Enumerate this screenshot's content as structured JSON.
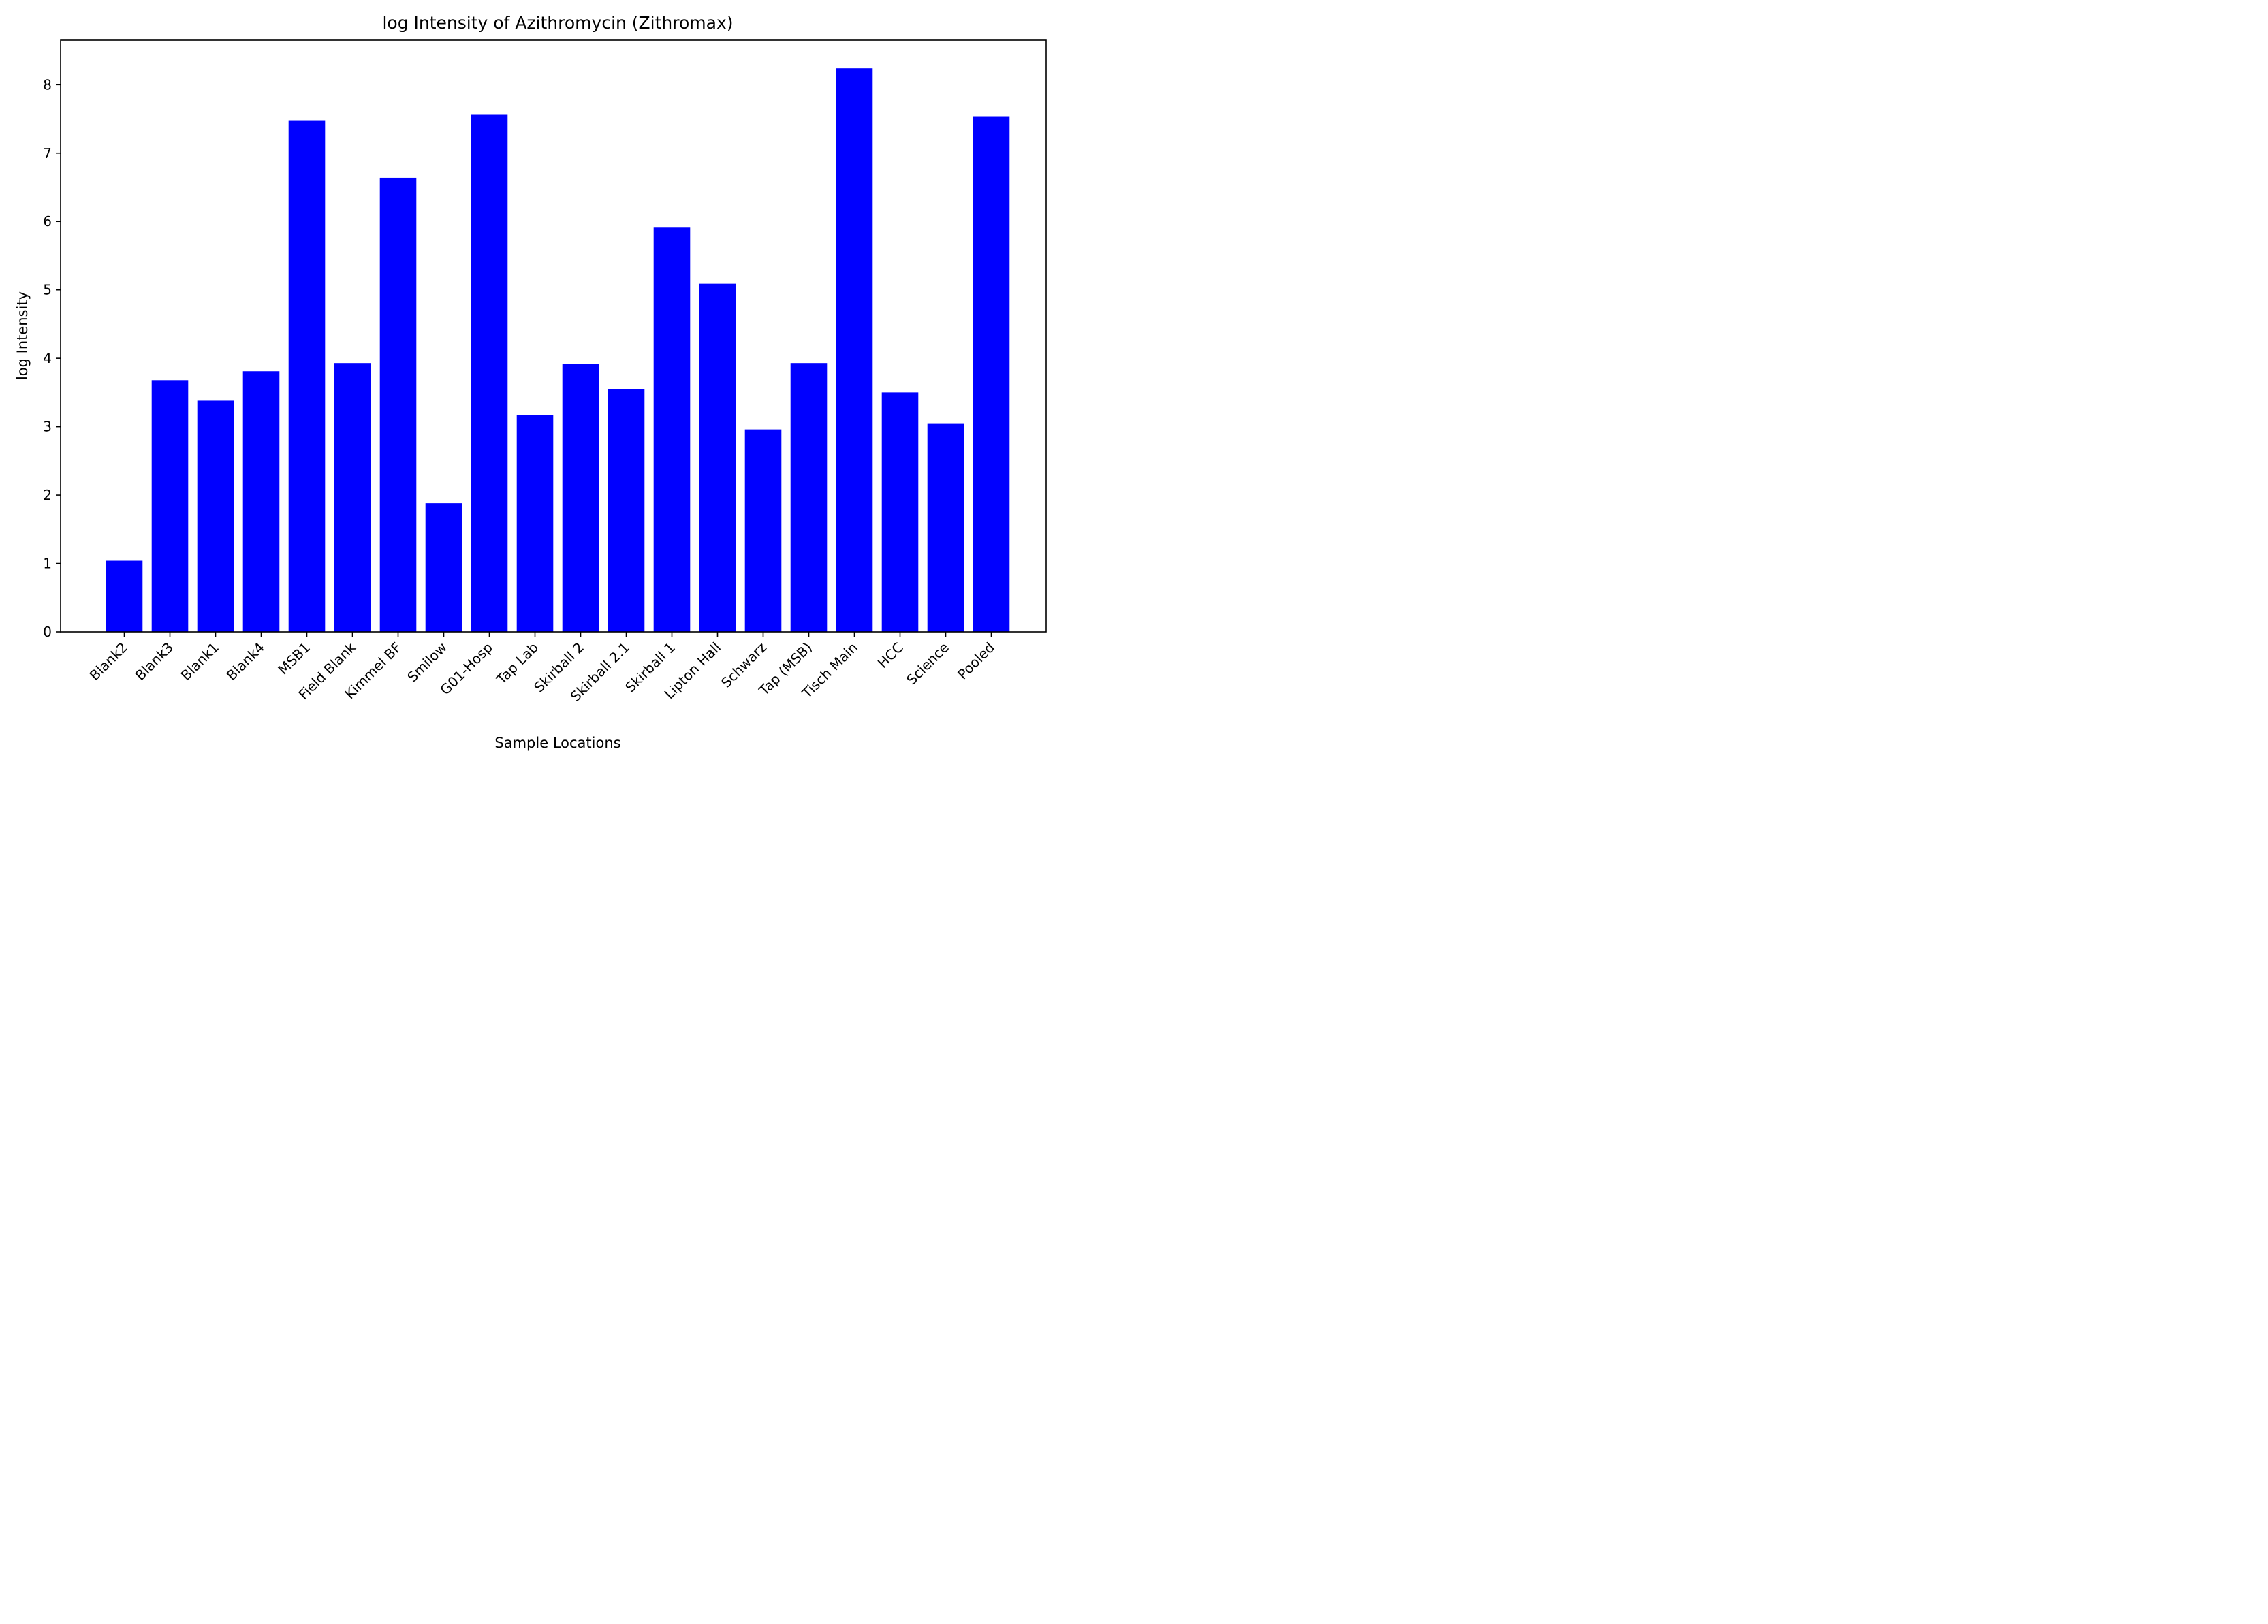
{
  "chart_data": {
    "type": "bar",
    "title": "log Intensity of Azithromycin (Zithromax)",
    "xlabel": "Sample Locations",
    "ylabel": "log Intensity",
    "categories": [
      "Blank2",
      "Blank3",
      "Blank1",
      "Blank4",
      "MSB1",
      "Field Blank",
      "Kimmel BF",
      "Smilow",
      "G01-Hosp",
      "Tap Lab",
      "Skirball 2",
      "Skirball 2.1",
      "Skirball 1",
      "Lipton Hall",
      "Schwarz",
      "Tap (MSB)",
      "Tisch Main",
      "HCC",
      "Science",
      "Pooled"
    ],
    "values": [
      1.04,
      3.68,
      3.38,
      3.81,
      7.48,
      3.93,
      6.64,
      1.88,
      7.56,
      3.17,
      3.92,
      3.55,
      5.91,
      5.09,
      2.96,
      3.93,
      8.24,
      3.5,
      3.05,
      7.53
    ],
    "yticks": [
      0,
      1,
      2,
      3,
      4,
      5,
      6,
      7,
      8
    ],
    "ylim": [
      0,
      8.65
    ],
    "bar_color": "#0000ff",
    "grid": false,
    "legend": false
  }
}
